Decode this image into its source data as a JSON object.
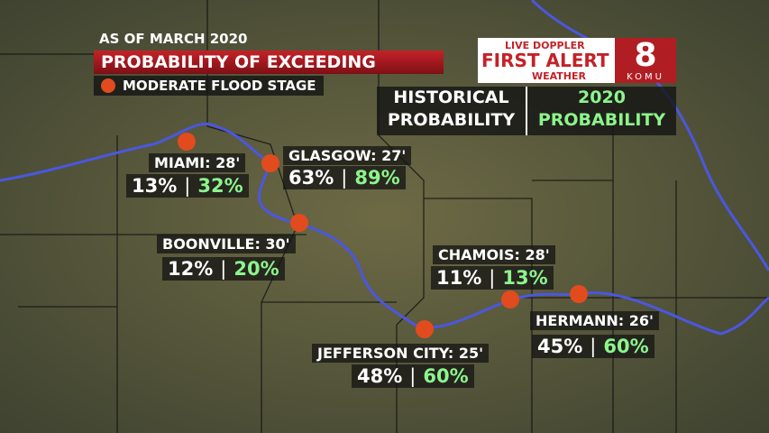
{
  "header": {
    "date": "AS OF MARCH 2020",
    "title": "PROBABILITY OF EXCEEDING",
    "legend": "MODERATE FLOOD STAGE"
  },
  "logo": {
    "line1": "LIVE DOPPLER",
    "line2": "FIRST ALERT",
    "line3": "WEATHER",
    "station": "KOMU",
    "channel": "8"
  },
  "columns": {
    "historical": [
      "HISTORICAL",
      "PROBABILITY"
    ],
    "current": [
      "2020",
      "PROBABILITY"
    ]
  },
  "locations": [
    {
      "name": "MIAMI: 28'",
      "historical": "13%",
      "current": "32%"
    },
    {
      "name": "GLASGOW: 27'",
      "historical": "63%",
      "current": "89%"
    },
    {
      "name": "BOONVILLE: 30'",
      "historical": "12%",
      "current": "20%"
    },
    {
      "name": "CHAMOIS: 28'",
      "historical": "11%",
      "current": "13%"
    },
    {
      "name": "HERMANN: 26'",
      "historical": "45%",
      "current": "60%"
    },
    {
      "name": "JEFFERSON CITY: 25'",
      "historical": "48%",
      "current": "60%"
    }
  ]
}
